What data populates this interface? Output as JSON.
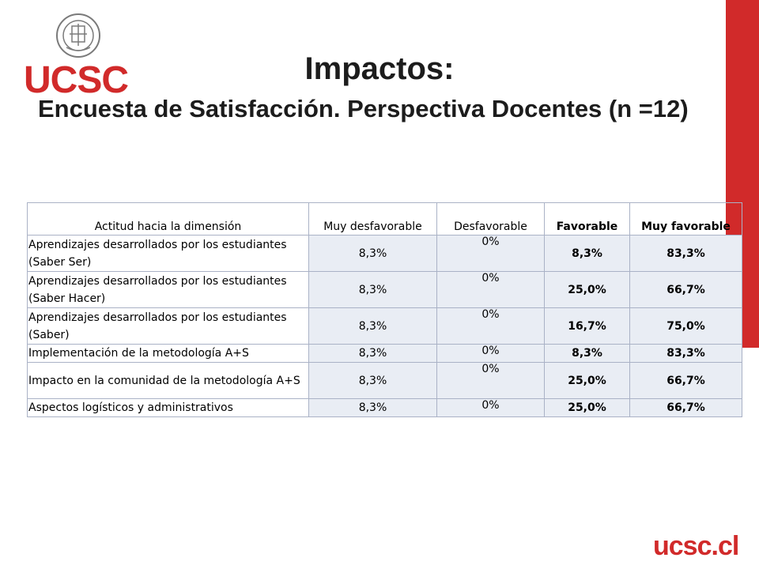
{
  "brand": {
    "logo_text": "UCSC",
    "footer_text": "ucsc.cl",
    "accent": "#d12a2a"
  },
  "title": "Impactos:",
  "subtitle": "Encuesta de Satisfacción. Perspectiva Docentes (n =12)",
  "table": {
    "headers": [
      "Actitud hacia la dimensión",
      "Muy desfavorable",
      "Desfavorable",
      "Favorable",
      "Muy favorable"
    ],
    "rows": [
      {
        "dimension": "Aprendizajes desarrollados por los estudiantes (Saber Ser)",
        "muy_desfavorable": "8,3%",
        "desfavorable": "0%",
        "favorable": "8,3%",
        "muy_favorable": "83,3%"
      },
      {
        "dimension": "Aprendizajes desarrollados por los estudiantes (Saber Hacer)",
        "muy_desfavorable": "8,3%",
        "desfavorable": "0%",
        "favorable": "25,0%",
        "muy_favorable": "66,7%"
      },
      {
        "dimension": "Aprendizajes desarrollados por los estudiantes (Saber)",
        "muy_desfavorable": "8,3%",
        "desfavorable": "0%",
        "favorable": "16,7%",
        "muy_favorable": "75,0%"
      },
      {
        "dimension": "Implementación de la metodología A+S",
        "muy_desfavorable": "8,3%",
        "desfavorable": "0%",
        "favorable": "8,3%",
        "muy_favorable": "83,3%"
      },
      {
        "dimension": "Impacto en la comunidad de la metodología A+S",
        "muy_desfavorable": "8,3%",
        "desfavorable": "0%",
        "favorable": "25,0%",
        "muy_favorable": "66,7%"
      },
      {
        "dimension": "Aspectos logísticos y administrativos",
        "muy_desfavorable": "8,3%",
        "desfavorable": "0%",
        "favorable": "25,0%",
        "muy_favorable": "66,7%"
      }
    ]
  }
}
